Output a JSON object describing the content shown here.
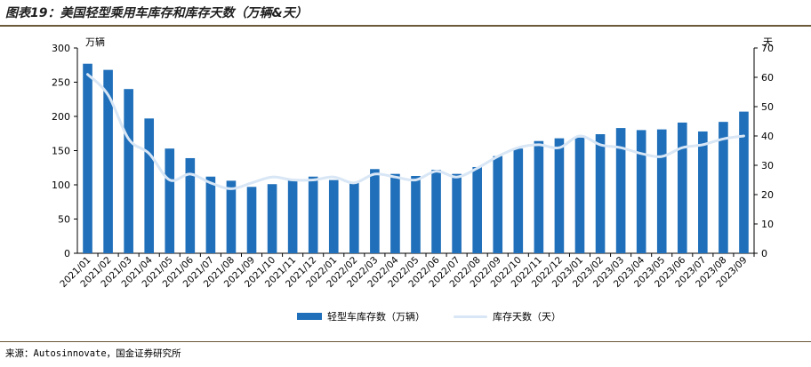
{
  "title": "图表19：美国轻型乘用车库存和库存天数（万辆&天）",
  "source": "来源：Autosinnovate，国金证券研究所",
  "colors": {
    "bar": "#1f6fba",
    "line": "#d8e6f5",
    "title_rule": "#6b5a3a"
  },
  "chart_data": {
    "type": "bar",
    "categories": [
      "2021/01",
      "2021/02",
      "2021/03",
      "2021/04",
      "2021/05",
      "2021/06",
      "2021/07",
      "2021/08",
      "2021/09",
      "2021/10",
      "2021/11",
      "2021/12",
      "2022/01",
      "2022/02",
      "2022/03",
      "2022/04",
      "2022/05",
      "2022/06",
      "2022/07",
      "2022/08",
      "2022/09",
      "2022/10",
      "2022/11",
      "2022/12",
      "2023/01",
      "2023/02",
      "2023/03",
      "2023/04",
      "2023/05",
      "2023/06",
      "2023/07",
      "2023/08",
      "2023/09"
    ],
    "series": [
      {
        "name": "轻型车库存数（万辆）",
        "type": "bar",
        "axis": "left",
        "values": [
          277,
          268,
          240,
          197,
          153,
          139,
          112,
          106,
          97,
          101,
          107,
          112,
          107,
          104,
          123,
          116,
          113,
          122,
          116,
          126,
          142,
          153,
          164,
          168,
          169,
          174,
          183,
          180,
          181,
          191,
          178,
          192,
          207
        ]
      },
      {
        "name": "库存天数（天）",
        "type": "line",
        "axis": "right",
        "values": [
          61,
          54,
          39,
          34,
          25,
          27,
          24,
          22,
          24,
          26,
          25,
          25,
          26,
          24,
          27,
          26,
          25,
          28,
          26,
          29,
          33,
          36,
          37,
          36,
          40,
          37,
          36,
          34,
          33,
          36,
          37,
          39,
          40
        ]
      }
    ],
    "left_axis": {
      "unit": "万辆",
      "ylim": [
        0,
        300
      ],
      "ticks": [
        "0",
        "50",
        "100",
        "150",
        "200",
        "250",
        "300"
      ]
    },
    "right_axis": {
      "unit": "天",
      "ylim": [
        0,
        70
      ],
      "ticks": [
        "0",
        "10",
        "20",
        "30",
        "40",
        "50",
        "60",
        "70"
      ]
    },
    "grid": false,
    "legend_position": "bottom"
  }
}
